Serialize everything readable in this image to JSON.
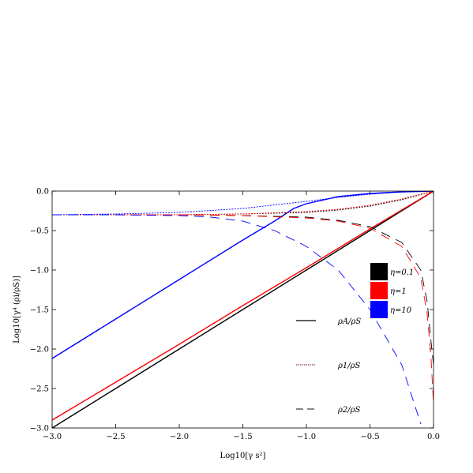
{
  "chart_data": {
    "type": "line",
    "title": "",
    "xlabel": "Log10[γ s²]",
    "ylabel": "Log10[γ⁴ (ρi/ρS)]",
    "xlim": [
      -3.0,
      0.0
    ],
    "ylim": [
      -3.0,
      0.0
    ],
    "xticks": [
      "−3.0",
      "−2.5",
      "−2.0",
      "−1.5",
      "−1.0",
      "−0.5",
      "0.0"
    ],
    "yticks": [
      "−3.0",
      "−2.5",
      "−2.0",
      "−1.5",
      "−1.0",
      "−0.5",
      "0.0"
    ],
    "grid": false,
    "legend_eta": [
      {
        "label": "η=0.1",
        "color": "#000000"
      },
      {
        "label": "η=1",
        "color": "#ff0000"
      },
      {
        "label": "η=10",
        "color": "#0000ff"
      }
    ],
    "legend_styles": [
      {
        "label": "ρA/ρS",
        "style": "solid"
      },
      {
        "label": "ρ1/ρS",
        "style": "dotted"
      },
      {
        "label": "ρ2/ρS",
        "style": "dashed"
      }
    ],
    "series": [
      {
        "eta": "0.1",
        "ratio": "rhoA",
        "color": "#000000",
        "style": "solid",
        "x": [
          -3.0,
          -2.5,
          -2.0,
          -1.5,
          -1.0,
          -0.5,
          0.0
        ],
        "y": [
          -3.0,
          -2.5,
          -2.0,
          -1.5,
          -1.0,
          -0.5,
          0.0
        ]
      },
      {
        "eta": "1",
        "ratio": "rhoA",
        "color": "#ff0000",
        "style": "solid",
        "x": [
          -3.0,
          -2.5,
          -2.0,
          -1.5,
          -1.0,
          -0.5,
          0.0
        ],
        "y": [
          -2.9,
          -2.42,
          -1.94,
          -1.45,
          -0.97,
          -0.48,
          0.0
        ]
      },
      {
        "eta": "10",
        "ratio": "rhoA",
        "color": "#0000ff",
        "style": "solid",
        "x": [
          -3.0,
          -2.5,
          -2.0,
          -1.5,
          -1.25,
          -1.1,
          -1.0,
          -0.75,
          -0.5,
          -0.25,
          0.0
        ],
        "y": [
          -2.12,
          -1.62,
          -1.12,
          -0.62,
          -0.38,
          -0.22,
          -0.16,
          -0.07,
          -0.03,
          -0.01,
          0.0
        ]
      },
      {
        "eta": "0.1",
        "ratio": "rho1",
        "color": "#000000",
        "style": "dotted",
        "x": [
          -3.0,
          -2.5,
          -2.0,
          -1.5,
          -1.0,
          -0.75,
          -0.5,
          -0.25,
          0.0
        ],
        "y": [
          -0.3,
          -0.3,
          -0.3,
          -0.29,
          -0.27,
          -0.24,
          -0.19,
          -0.11,
          0.0
        ]
      },
      {
        "eta": "1",
        "ratio": "rho1",
        "color": "#ff0000",
        "style": "dotted",
        "x": [
          -3.0,
          -2.5,
          -2.0,
          -1.5,
          -1.0,
          -0.75,
          -0.5,
          -0.25,
          0.0
        ],
        "y": [
          -0.3,
          -0.3,
          -0.3,
          -0.29,
          -0.26,
          -0.23,
          -0.18,
          -0.1,
          0.0
        ]
      },
      {
        "eta": "10",
        "ratio": "rho1",
        "color": "#0000ff",
        "style": "dotted",
        "x": [
          -3.0,
          -2.5,
          -2.0,
          -1.5,
          -1.0,
          -0.75,
          -0.5,
          -0.25,
          0.0
        ],
        "y": [
          -0.3,
          -0.29,
          -0.27,
          -0.22,
          -0.13,
          -0.08,
          -0.04,
          -0.01,
          0.0
        ]
      },
      {
        "eta": "0.1",
        "ratio": "rho2",
        "color": "#000000",
        "style": "dashed",
        "x": [
          -3.0,
          -2.5,
          -2.0,
          -1.5,
          -1.0,
          -0.75,
          -0.5,
          -0.25,
          -0.1,
          -0.05,
          -0.02,
          0.0
        ],
        "y": [
          -0.3,
          -0.3,
          -0.3,
          -0.31,
          -0.33,
          -0.37,
          -0.45,
          -0.65,
          -1.0,
          -1.4,
          -1.9,
          -2.2
        ]
      },
      {
        "eta": "1",
        "ratio": "rho2",
        "color": "#ff0000",
        "style": "dashed",
        "x": [
          -3.0,
          -2.5,
          -2.0,
          -1.5,
          -1.0,
          -0.75,
          -0.5,
          -0.25,
          -0.1,
          -0.05,
          -0.02,
          0.0
        ],
        "y": [
          -0.3,
          -0.3,
          -0.3,
          -0.31,
          -0.34,
          -0.38,
          -0.47,
          -0.7,
          -1.1,
          -1.55,
          -2.1,
          -2.7
        ]
      },
      {
        "eta": "10",
        "ratio": "rho2",
        "color": "#0000ff",
        "style": "dashed",
        "x": [
          -3.0,
          -2.5,
          -2.0,
          -1.75,
          -1.5,
          -1.25,
          -1.0,
          -0.75,
          -0.5,
          -0.25,
          -0.1
        ],
        "y": [
          -0.3,
          -0.3,
          -0.31,
          -0.33,
          -0.38,
          -0.5,
          -0.7,
          -1.0,
          -1.5,
          -2.2,
          -2.95
        ]
      }
    ]
  }
}
